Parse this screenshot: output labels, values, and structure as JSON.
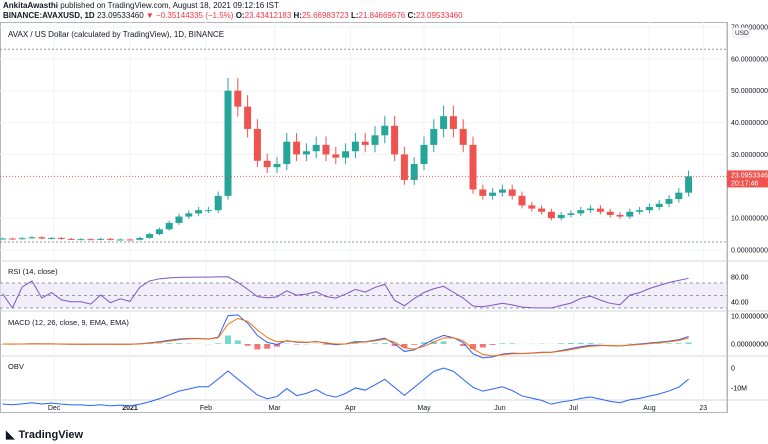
{
  "header": {
    "publisher": "AnkitaAwasthi",
    "published": "published on TradingView.com, August 18, 2021 09:12:16 IST",
    "symbol": "BINANCE:AVAXUSD, 1D",
    "last": "23.09533460",
    "change": "▼ −0.35144335 (−1.5%)",
    "o_label": "O:",
    "o": "23.43412183",
    "h_label": "H:",
    "h": "25.66983723",
    "l_label": "L:",
    "l": "21.84669676",
    "c_label": "C:",
    "c": "23.09533460"
  },
  "colors": {
    "up": "#26a69a",
    "down": "#ef5350",
    "rsi": "#7e57c2",
    "macd": "#2962ff",
    "signal": "#ff6d00",
    "obv": "#2962ff",
    "price_tag": "#ef5350"
  },
  "chart_data": [
    {
      "type": "candlestick",
      "title": "AVAX / US Dollar (calculated by TradingView), 1D, BINANCE",
      "currency": "USD",
      "ylim": [
        0,
        70
      ],
      "y_ticks": [
        "70.00000000",
        "60.00000000",
        "50.00000000",
        "40.00000000",
        "30.00000000",
        "10.00000000",
        "0.00000000"
      ],
      "last_price": "23.09533460",
      "countdown": "20:17:46",
      "x_ticks": [
        "Dec",
        "2021",
        "Feb",
        "Mar",
        "Apr",
        "May",
        "Jun",
        "Jul",
        "Aug",
        "23"
      ],
      "dates": [
        "2020-11-10",
        "2020-11-14",
        "2020-11-18",
        "2020-11-22",
        "2020-11-26",
        "2020-11-30",
        "2020-12-04",
        "2020-12-08",
        "2020-12-12",
        "2020-12-16",
        "2020-12-20",
        "2020-12-24",
        "2020-12-28",
        "2021-01-01",
        "2021-01-05",
        "2021-01-09",
        "2021-01-13",
        "2021-01-17",
        "2021-01-21",
        "2021-01-25",
        "2021-01-29",
        "2021-02-02",
        "2021-02-06",
        "2021-02-10",
        "2021-02-14",
        "2021-02-18",
        "2021-02-22",
        "2021-02-26",
        "2021-03-02",
        "2021-03-06",
        "2021-03-10",
        "2021-03-14",
        "2021-03-18",
        "2021-03-22",
        "2021-03-26",
        "2021-03-30",
        "2021-04-03",
        "2021-04-07",
        "2021-04-11",
        "2021-04-15",
        "2021-04-19",
        "2021-04-23",
        "2021-04-27",
        "2021-05-01",
        "2021-05-05",
        "2021-05-09",
        "2021-05-13",
        "2021-05-17",
        "2021-05-21",
        "2021-05-25",
        "2021-05-29",
        "2021-06-02",
        "2021-06-06",
        "2021-06-10",
        "2021-06-14",
        "2021-06-18",
        "2021-06-22",
        "2021-06-26",
        "2021-06-30",
        "2021-07-04",
        "2021-07-08",
        "2021-07-12",
        "2021-07-16",
        "2021-07-20",
        "2021-07-24",
        "2021-07-28",
        "2021-08-01",
        "2021-08-05",
        "2021-08-09",
        "2021-08-13",
        "2021-08-17"
      ],
      "close": [
        3.6,
        3.5,
        3.7,
        4.0,
        3.6,
        3.8,
        3.5,
        3.4,
        3.4,
        3.3,
        3.5,
        3.2,
        3.3,
        3.2,
        3.8,
        5.0,
        6.5,
        8.5,
        10.5,
        11.5,
        12.5,
        12.5,
        17,
        50,
        45,
        38,
        28,
        26,
        27,
        34,
        30,
        31,
        33,
        30,
        29,
        31,
        34,
        33,
        36,
        39,
        30,
        22,
        27,
        33,
        38,
        42,
        38,
        33,
        19,
        17,
        18,
        19,
        17,
        14,
        13,
        12,
        10,
        11,
        11.5,
        12.5,
        13,
        12,
        11,
        10.5,
        12,
        12.5,
        13.5,
        14.5,
        16,
        18,
        23.1
      ]
    },
    {
      "type": "line",
      "title": "RSI (14, close)",
      "y_ticks": [
        "80.00",
        "40.00"
      ]
    },
    {
      "type": "line",
      "title": "MACD (12, 26, close, 9, EMA, EMA)",
      "y_ticks": [
        "10.00000000",
        "0.00000000"
      ]
    },
    {
      "type": "line",
      "title": "OBV",
      "y_ticks": [
        "0",
        "-10M"
      ]
    }
  ],
  "footer": {
    "logo": "TradingView"
  }
}
